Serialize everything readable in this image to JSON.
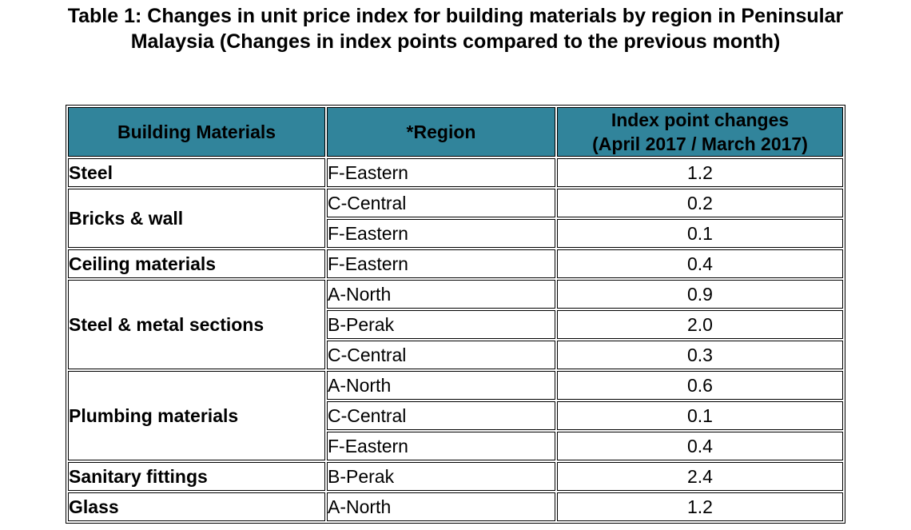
{
  "title": {
    "line1": "Table 1: Changes in unit price index for building materials by region in Peninsular",
    "line2": "Malaysia (Changes in index points compared to the previous month)"
  },
  "headers": {
    "material": "Building Materials",
    "region": "*Region",
    "change_line1": "Index point changes",
    "change_line2": "(April 2017 / March 2017)"
  },
  "groups": [
    {
      "material": "Steel",
      "rows": [
        {
          "region": "F-Eastern",
          "value": "1.2"
        }
      ]
    },
    {
      "material": "Bricks & wall",
      "rows": [
        {
          "region": "C-Central",
          "value": "0.2"
        },
        {
          "region": "F-Eastern",
          "value": "0.1"
        }
      ]
    },
    {
      "material": "Ceiling materials",
      "rows": [
        {
          "region": "F-Eastern",
          "value": "0.4"
        }
      ]
    },
    {
      "material": "Steel & metal sections",
      "rows": [
        {
          "region": "A-North",
          "value": "0.9"
        },
        {
          "region": "B-Perak",
          "value": "2.0"
        },
        {
          "region": "C-Central",
          "value": "0.3"
        }
      ]
    },
    {
      "material": "Plumbing materials",
      "rows": [
        {
          "region": "A-North",
          "value": "0.6"
        },
        {
          "region": "C-Central",
          "value": "0.1"
        },
        {
          "region": "F-Eastern",
          "value": "0.4"
        }
      ]
    },
    {
      "material": "Sanitary fittings",
      "rows": [
        {
          "region": "B-Perak",
          "value": "2.4"
        }
      ]
    },
    {
      "material": "Glass",
      "rows": [
        {
          "region": "A-North",
          "value": "1.2"
        }
      ]
    }
  ],
  "colors": {
    "header_bg": "#31849b",
    "border": "#000000"
  }
}
